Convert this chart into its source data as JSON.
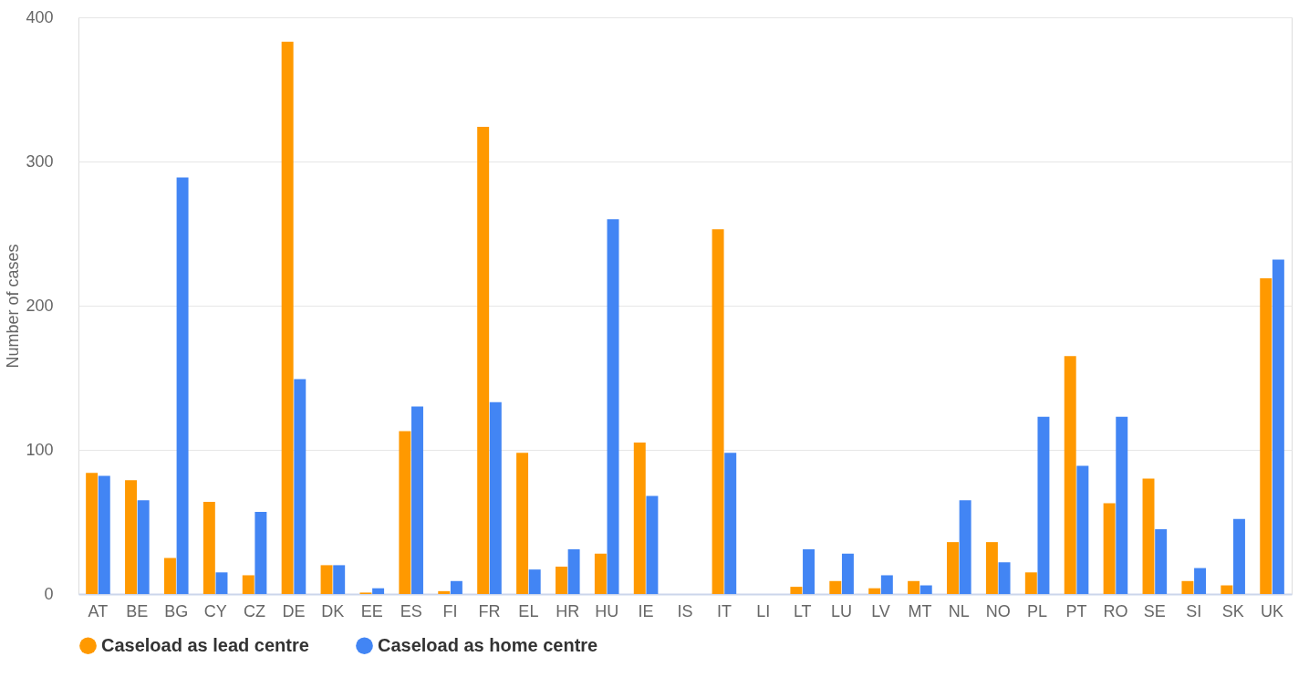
{
  "chart_data": {
    "type": "bar",
    "ylabel": "Number of cases",
    "categories": [
      "AT",
      "BE",
      "BG",
      "CY",
      "CZ",
      "DE",
      "DK",
      "EE",
      "ES",
      "FI",
      "FR",
      "EL",
      "HR",
      "HU",
      "IE",
      "IS",
      "IT",
      "LI",
      "LT",
      "LU",
      "LV",
      "MT",
      "NL",
      "NO",
      "PL",
      "PT",
      "RO",
      "SE",
      "SI",
      "SK",
      "UK"
    ],
    "series": [
      {
        "name": "Caseload as lead centre",
        "color": "#ff9900",
        "values": [
          84,
          79,
          25,
          64,
          13,
          383,
          20,
          1,
          113,
          2,
          324,
          98,
          19,
          28,
          105,
          0,
          253,
          0,
          5,
          9,
          4,
          9,
          36,
          36,
          15,
          165,
          63,
          80,
          9,
          6,
          219
        ]
      },
      {
        "name": "Caseload as home centre",
        "color": "#4285f4",
        "values": [
          82,
          65,
          289,
          15,
          57,
          149,
          20,
          4,
          130,
          9,
          133,
          17,
          31,
          260,
          68,
          0,
          98,
          0,
          31,
          28,
          13,
          6,
          65,
          22,
          123,
          89,
          123,
          45,
          18,
          52,
          232
        ]
      }
    ],
    "ylim": [
      0,
      400
    ],
    "yticks": [
      0,
      100,
      200,
      300,
      400
    ],
    "grid": "y",
    "legend": "bottom"
  }
}
